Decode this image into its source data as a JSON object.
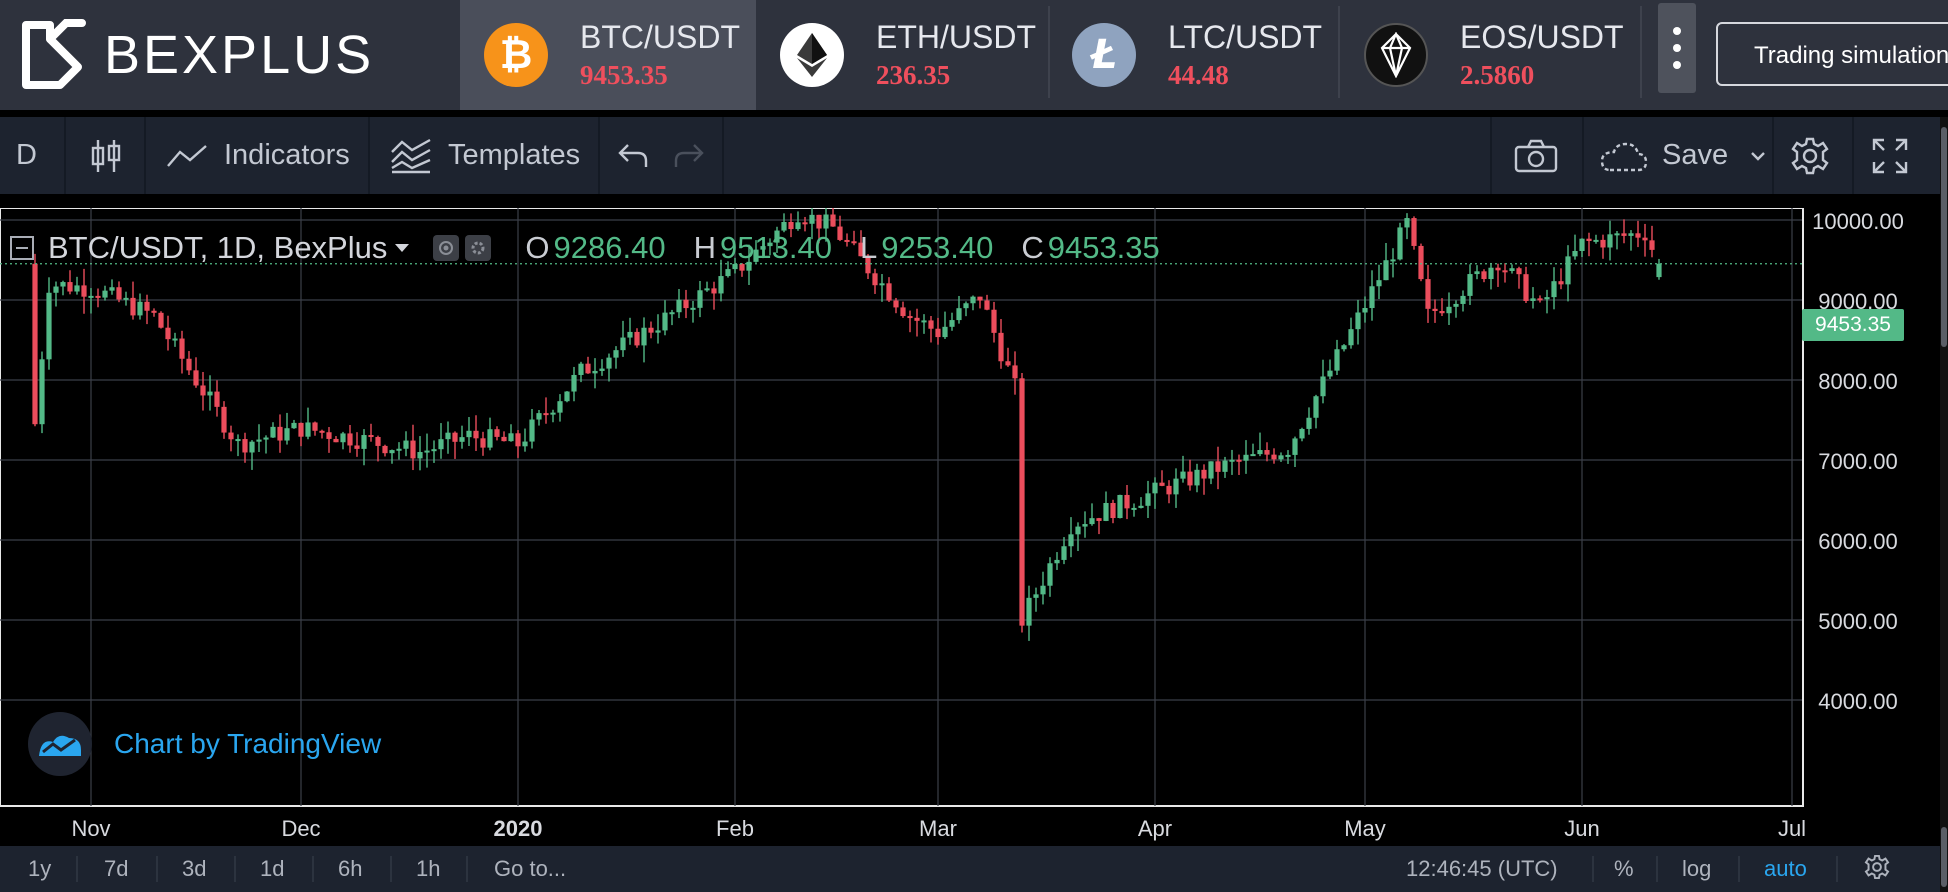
{
  "brand": {
    "name": "BEXPLUS"
  },
  "tickers": [
    {
      "pair": "BTC/USDT",
      "price": "9453.35",
      "icon": "bitcoin-icon",
      "color": "#f7931a",
      "active": true
    },
    {
      "pair": "ETH/USDT",
      "price": "236.35",
      "icon": "ethereum-icon",
      "color": "#ffffff",
      "active": false
    },
    {
      "pair": "LTC/USDT",
      "price": "44.48",
      "icon": "litecoin-icon",
      "color": "#8fa3bf",
      "active": false
    },
    {
      "pair": "EOS/USDT",
      "price": "2.5860",
      "icon": "eos-icon",
      "color": "#111111",
      "active": false
    }
  ],
  "header": {
    "simulation_label": "Trading simulation"
  },
  "toolbar": {
    "interval": "D",
    "indicators_label": "Indicators",
    "templates_label": "Templates",
    "save_label": "Save"
  },
  "legend": {
    "symbol": "BTC/USDT, 1D, BexPlus",
    "o_label": "O",
    "o_value": "9286.40",
    "h_label": "H",
    "h_value": "9513.40",
    "l_label": "L",
    "l_value": "9253.40",
    "c_label": "C",
    "c_value": "9453.35"
  },
  "attribution": "Chart by TradingView",
  "last_price_label": "9453.35",
  "bottom": {
    "ranges": [
      "1y",
      "7d",
      "3d",
      "1d",
      "6h",
      "1h"
    ],
    "goto_label": "Go to...",
    "clock": "12:46:45 (UTC)",
    "percent_label": "%",
    "log_label": "log",
    "auto_label": "auto"
  },
  "colors": {
    "up": "#53b987",
    "down": "#eb4d5c",
    "accent_blue": "#2aa6ef",
    "background": "#000000",
    "panel": "#1d232f"
  },
  "chart_data": {
    "type": "candlestick",
    "title": "BTC/USDT, 1D, BexPlus",
    "x_tick_labels": [
      "Nov",
      "Dec",
      "2020",
      "Feb",
      "Mar",
      "Apr",
      "May",
      "Jun",
      "Jul"
    ],
    "y_tick_labels": [
      "4000.00",
      "5000.00",
      "6000.00",
      "7000.00",
      "8000.00",
      "9000.00",
      "10000.00"
    ],
    "ylim": [
      3800,
      10300
    ],
    "grid": true,
    "last_price": 9453.35,
    "last_candle": {
      "open": 9286.4,
      "high": 9513.4,
      "low": 9253.4,
      "close": 9453.35
    },
    "series": [
      {
        "name": "close",
        "x": [
          "2019-10-24",
          "2019-10-26",
          "2019-11-01",
          "2019-11-10",
          "2019-11-22",
          "2019-12-01",
          "2019-12-10",
          "2019-12-18",
          "2019-12-25",
          "2020-01-01",
          "2020-01-10",
          "2020-01-20",
          "2020-02-01",
          "2020-02-10",
          "2020-02-15",
          "2020-02-26",
          "2020-03-01",
          "2020-03-07",
          "2020-03-12",
          "2020-03-13",
          "2020-03-20",
          "2020-04-01",
          "2020-04-10",
          "2020-04-20",
          "2020-04-29",
          "2020-05-07",
          "2020-05-10",
          "2020-05-20",
          "2020-05-26",
          "2020-06-01",
          "2020-06-10",
          "2020-06-12"
        ],
        "values": [
          7450,
          9200,
          9150,
          8800,
          7200,
          7400,
          7250,
          7100,
          7300,
          7200,
          8100,
          8650,
          9350,
          10100,
          9900,
          8800,
          8600,
          9050,
          7900,
          5000,
          6200,
          6600,
          6900,
          7150,
          8600,
          9950,
          8800,
          9500,
          8900,
          9700,
          9850,
          9453.35
        ]
      }
    ]
  }
}
